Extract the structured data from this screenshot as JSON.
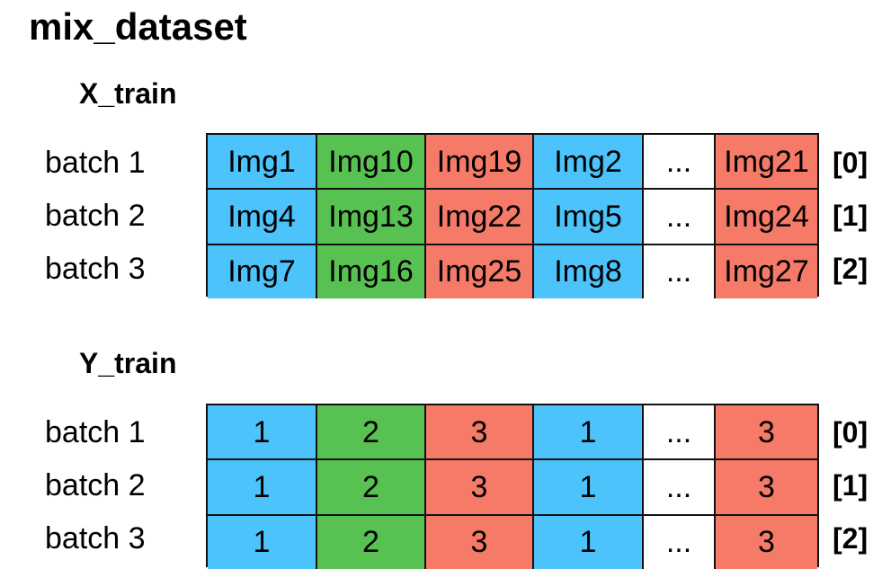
{
  "title": "mix_dataset",
  "colors": {
    "blue": "#4cc3fb",
    "green": "#57c151",
    "red": "#f57a68",
    "white": "#ffffff"
  },
  "x_train": {
    "title": "X_train",
    "rows": [
      {
        "label": "batch 1",
        "index": "[0]",
        "cells": [
          {
            "text": "Img1",
            "color": "blue"
          },
          {
            "text": "Img10",
            "color": "green"
          },
          {
            "text": "Img19",
            "color": "red"
          },
          {
            "text": "Img2",
            "color": "blue"
          },
          {
            "text": "...",
            "color": "white"
          },
          {
            "text": "Img21",
            "color": "red"
          }
        ]
      },
      {
        "label": "batch 2",
        "index": "[1]",
        "cells": [
          {
            "text": "Img4",
            "color": "blue"
          },
          {
            "text": "Img13",
            "color": "green"
          },
          {
            "text": "Img22",
            "color": "red"
          },
          {
            "text": "Img5",
            "color": "blue"
          },
          {
            "text": "...",
            "color": "white"
          },
          {
            "text": "Img24",
            "color": "red"
          }
        ]
      },
      {
        "label": "batch 3",
        "index": "[2]",
        "cells": [
          {
            "text": "Img7",
            "color": "blue"
          },
          {
            "text": "Img16",
            "color": "green"
          },
          {
            "text": "Img25",
            "color": "red"
          },
          {
            "text": "Img8",
            "color": "blue"
          },
          {
            "text": "...",
            "color": "white"
          },
          {
            "text": "Img27",
            "color": "red"
          }
        ]
      }
    ]
  },
  "y_train": {
    "title": "Y_train",
    "rows": [
      {
        "label": "batch 1",
        "index": "[0]",
        "cells": [
          {
            "text": "1",
            "color": "blue"
          },
          {
            "text": "2",
            "color": "green"
          },
          {
            "text": "3",
            "color": "red"
          },
          {
            "text": "1",
            "color": "blue"
          },
          {
            "text": "...",
            "color": "white"
          },
          {
            "text": "3",
            "color": "red"
          }
        ]
      },
      {
        "label": "batch 2",
        "index": "[1]",
        "cells": [
          {
            "text": "1",
            "color": "blue"
          },
          {
            "text": "2",
            "color": "green"
          },
          {
            "text": "3",
            "color": "red"
          },
          {
            "text": "1",
            "color": "blue"
          },
          {
            "text": "...",
            "color": "white"
          },
          {
            "text": "3",
            "color": "red"
          }
        ]
      },
      {
        "label": "batch 3",
        "index": "[2]",
        "cells": [
          {
            "text": "1",
            "color": "blue"
          },
          {
            "text": "2",
            "color": "green"
          },
          {
            "text": "3",
            "color": "red"
          },
          {
            "text": "1",
            "color": "blue"
          },
          {
            "text": "...",
            "color": "white"
          },
          {
            "text": "3",
            "color": "red"
          }
        ]
      }
    ]
  }
}
